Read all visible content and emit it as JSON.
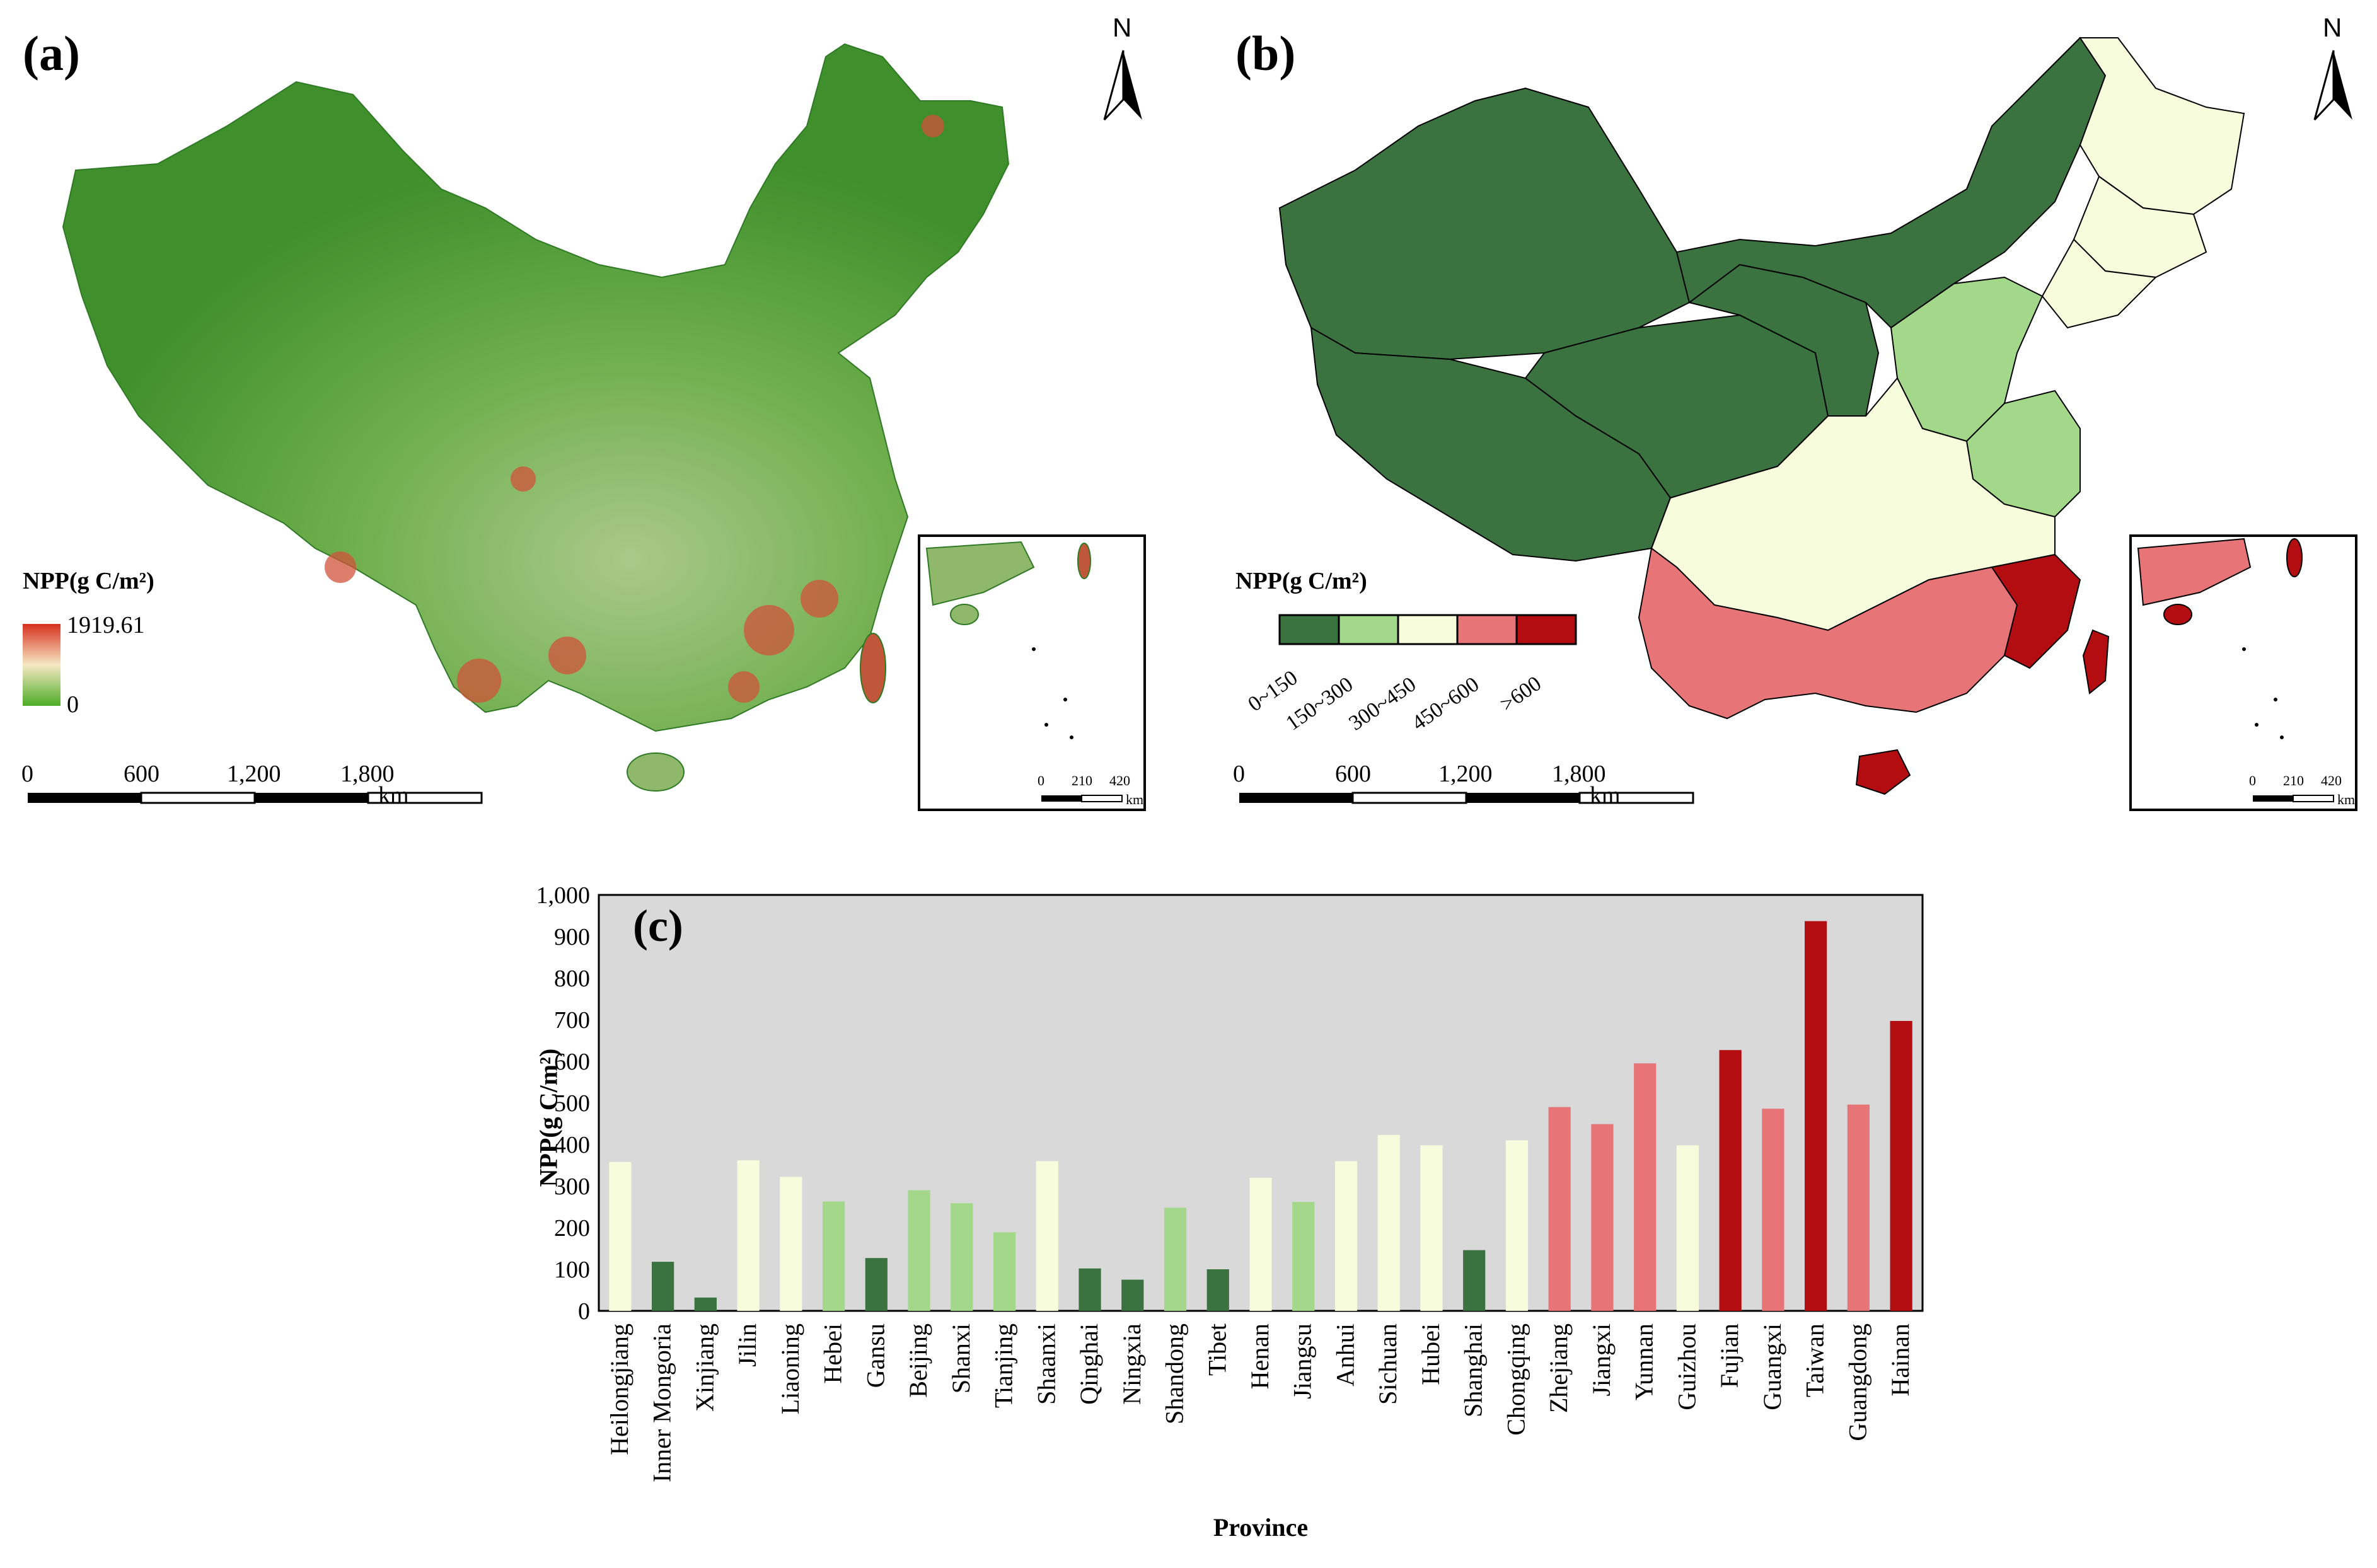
{
  "panels": {
    "a": {
      "label": "(a)",
      "north": "N",
      "legend": {
        "title": "NPP(g C/m²)",
        "max": "1919.61",
        "min": "0",
        "ramp": [
          "#d7301f",
          "#f6e8c3",
          "#4dac26"
        ]
      },
      "scale": {
        "ticks": [
          "0",
          "600",
          "1,200",
          "1,800"
        ],
        "unit": "km"
      },
      "inset_scale": {
        "ticks": [
          "0",
          "210",
          "420"
        ],
        "unit": "km"
      }
    },
    "b": {
      "label": "(b)",
      "north": "N",
      "legend": {
        "title": "NPP(g C/m²)",
        "classes": [
          "0~150",
          "150~300",
          "300~450",
          "450~600",
          ">600"
        ],
        "colors": [
          "#3b7340",
          "#a3d88a",
          "#f7fcdc",
          "#e77577",
          "#b30d12"
        ]
      },
      "scale": {
        "ticks": [
          "0",
          "600",
          "1,200",
          "1,800"
        ],
        "unit": "km"
      },
      "inset_scale": {
        "ticks": [
          "0",
          "210",
          "420"
        ],
        "unit": "km"
      }
    },
    "c": {
      "label": "(c)"
    }
  },
  "chart_data": {
    "type": "bar",
    "title": "(c)",
    "xlabel": "Province",
    "ylabel": "NPP(g C/m²)",
    "ylim": [
      0,
      1000
    ],
    "yticks": [
      "0",
      "100",
      "200",
      "300",
      "400",
      "500",
      "600",
      "700",
      "800",
      "900",
      "1,000"
    ],
    "background": "#d9d9d9",
    "categories": [
      "Heilongjiang",
      "Inner Mongoria",
      "Xinjiang",
      "Jilin",
      "Liaoning",
      "Hebei",
      "Gansu",
      "Beijing",
      "Shanxi",
      "Tianjing",
      "Shaanxi",
      "Qinghai",
      "Ningxia",
      "Shandong",
      "Tibet",
      "Henan",
      "Jiangsu",
      "Anhui",
      "Sichuan",
      "Hubei",
      "Shanghai",
      "Chongqing",
      "Zhejiang",
      "Jiangxi",
      "Yunnan",
      "Guizhou",
      "Fujian",
      "Guangxi",
      "Taiwan",
      "Guangdong",
      "Hainan"
    ],
    "values": [
      358,
      118,
      32,
      362,
      322,
      263,
      127,
      290,
      259,
      189,
      360,
      102,
      75,
      248,
      100,
      320,
      262,
      360,
      423,
      398,
      146,
      410,
      490,
      449,
      595,
      398,
      627,
      486,
      937,
      496,
      697
    ],
    "colors": [
      "#f7fcdc",
      "#3b7340",
      "#3b7340",
      "#f7fcdc",
      "#f7fcdc",
      "#a3d88a",
      "#3b7340",
      "#a3d88a",
      "#a3d88a",
      "#a3d88a",
      "#f7fcdc",
      "#3b7340",
      "#3b7340",
      "#a3d88a",
      "#3b7340",
      "#f7fcdc",
      "#a3d88a",
      "#f7fcdc",
      "#f7fcdc",
      "#f7fcdc",
      "#3b7340",
      "#f7fcdc",
      "#e77577",
      "#e77577",
      "#e77577",
      "#f7fcdc",
      "#b30d12",
      "#e77577",
      "#b30d12",
      "#e77577",
      "#b30d12"
    ]
  }
}
